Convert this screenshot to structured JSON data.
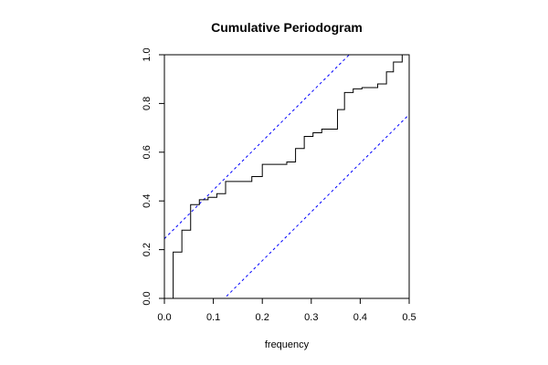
{
  "chart_data": {
    "type": "line",
    "title": "Cumulative Periodogram",
    "xlabel": "frequency",
    "ylabel": "",
    "xlim": [
      0,
      0.5
    ],
    "ylim": [
      0,
      1
    ],
    "x_ticks": [
      "0.0",
      "0.1",
      "0.2",
      "0.3",
      "0.4",
      "0.5"
    ],
    "y_ticks": [
      "0.0",
      "0.2",
      "0.4",
      "0.6",
      "0.8",
      "1.0"
    ],
    "grid": false,
    "series": [
      {
        "style": "step",
        "color": "#000000",
        "points": [
          [
            0.0,
            0.0
          ],
          [
            0.0179,
            0.0
          ],
          [
            0.0179,
            0.19
          ],
          [
            0.0357,
            0.19
          ],
          [
            0.0357,
            0.28
          ],
          [
            0.0536,
            0.28
          ],
          [
            0.0536,
            0.385
          ],
          [
            0.0714,
            0.385
          ],
          [
            0.0714,
            0.405
          ],
          [
            0.0893,
            0.405
          ],
          [
            0.0893,
            0.415
          ],
          [
            0.1071,
            0.415
          ],
          [
            0.1071,
            0.43
          ],
          [
            0.125,
            0.43
          ],
          [
            0.125,
            0.48
          ],
          [
            0.1786,
            0.48
          ],
          [
            0.1786,
            0.5
          ],
          [
            0.2,
            0.5
          ],
          [
            0.2,
            0.55
          ],
          [
            0.25,
            0.55
          ],
          [
            0.25,
            0.56
          ],
          [
            0.2679,
            0.56
          ],
          [
            0.2679,
            0.615
          ],
          [
            0.2857,
            0.615
          ],
          [
            0.2857,
            0.665
          ],
          [
            0.3036,
            0.665
          ],
          [
            0.3036,
            0.68
          ],
          [
            0.3214,
            0.68
          ],
          [
            0.3214,
            0.695
          ],
          [
            0.3536,
            0.695
          ],
          [
            0.3536,
            0.775
          ],
          [
            0.3679,
            0.775
          ],
          [
            0.3679,
            0.845
          ],
          [
            0.3857,
            0.845
          ],
          [
            0.3857,
            0.86
          ],
          [
            0.4036,
            0.86
          ],
          [
            0.4036,
            0.865
          ],
          [
            0.4357,
            0.865
          ],
          [
            0.4357,
            0.88
          ],
          [
            0.4536,
            0.88
          ],
          [
            0.4536,
            0.93
          ],
          [
            0.4679,
            0.93
          ],
          [
            0.4679,
            0.97
          ],
          [
            0.4857,
            0.97
          ],
          [
            0.4857,
            1.0
          ],
          [
            0.5,
            1.0
          ]
        ]
      }
    ],
    "confidence_bands": [
      {
        "style": "dashed",
        "color": "#0000ff",
        "intercept": 0.245,
        "slope": 2
      },
      {
        "style": "dashed",
        "color": "#0000ff",
        "intercept": -0.245,
        "slope": 2
      }
    ]
  }
}
